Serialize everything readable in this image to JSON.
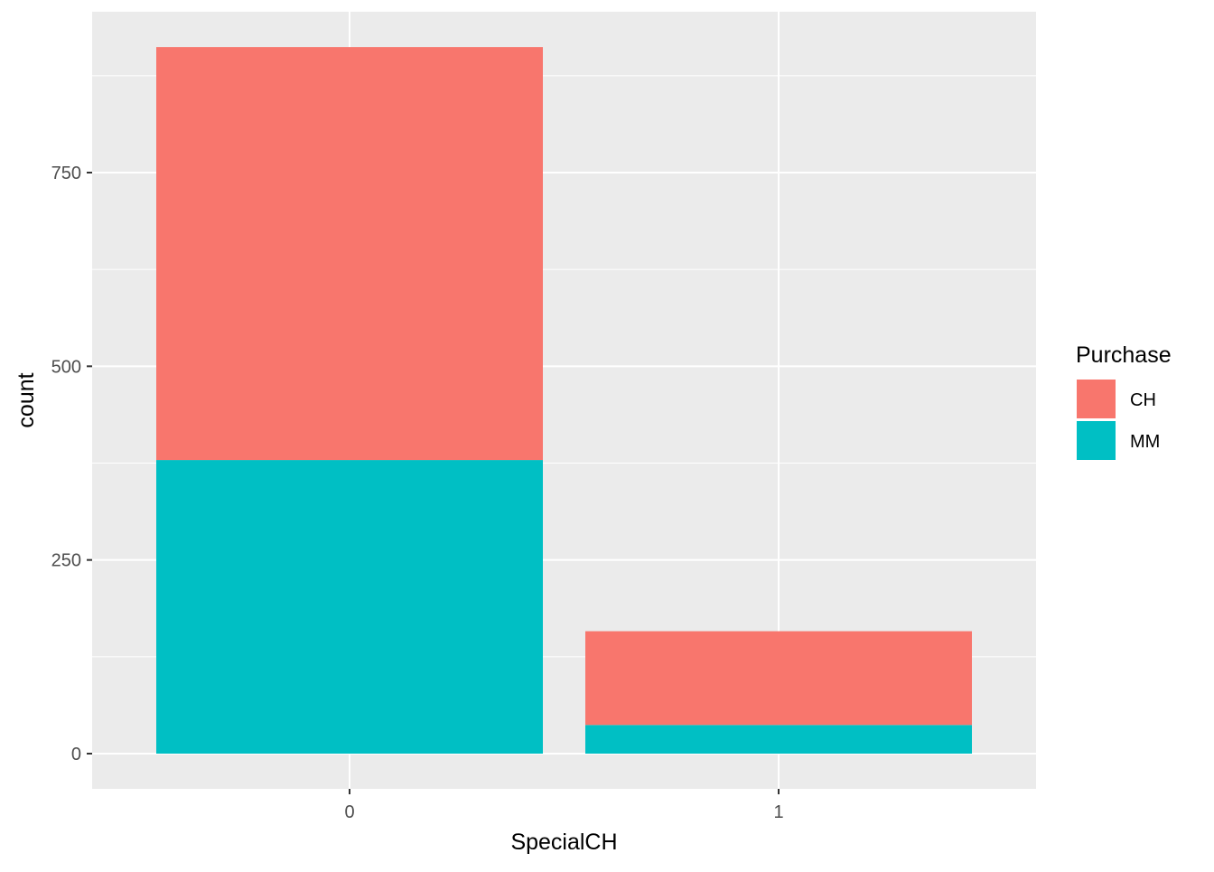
{
  "chart_data": {
    "type": "bar",
    "stacked": true,
    "title": "",
    "xlabel": "SpecialCH",
    "ylabel": "count",
    "categories": [
      "0",
      "1"
    ],
    "series": [
      {
        "name": "CH",
        "values": [
          533,
          121
        ],
        "color": "#F8766D"
      },
      {
        "name": "MM",
        "values": [
          379,
          37
        ],
        "color": "#00BFC4"
      }
    ],
    "ylim": [
      0,
      958
    ],
    "yticks": [
      0,
      250,
      500,
      750
    ],
    "grid": true,
    "panel_background": "#EBEBEB",
    "legend": {
      "title": "Purchase",
      "position": "right",
      "entries": [
        "CH",
        "MM"
      ]
    }
  }
}
